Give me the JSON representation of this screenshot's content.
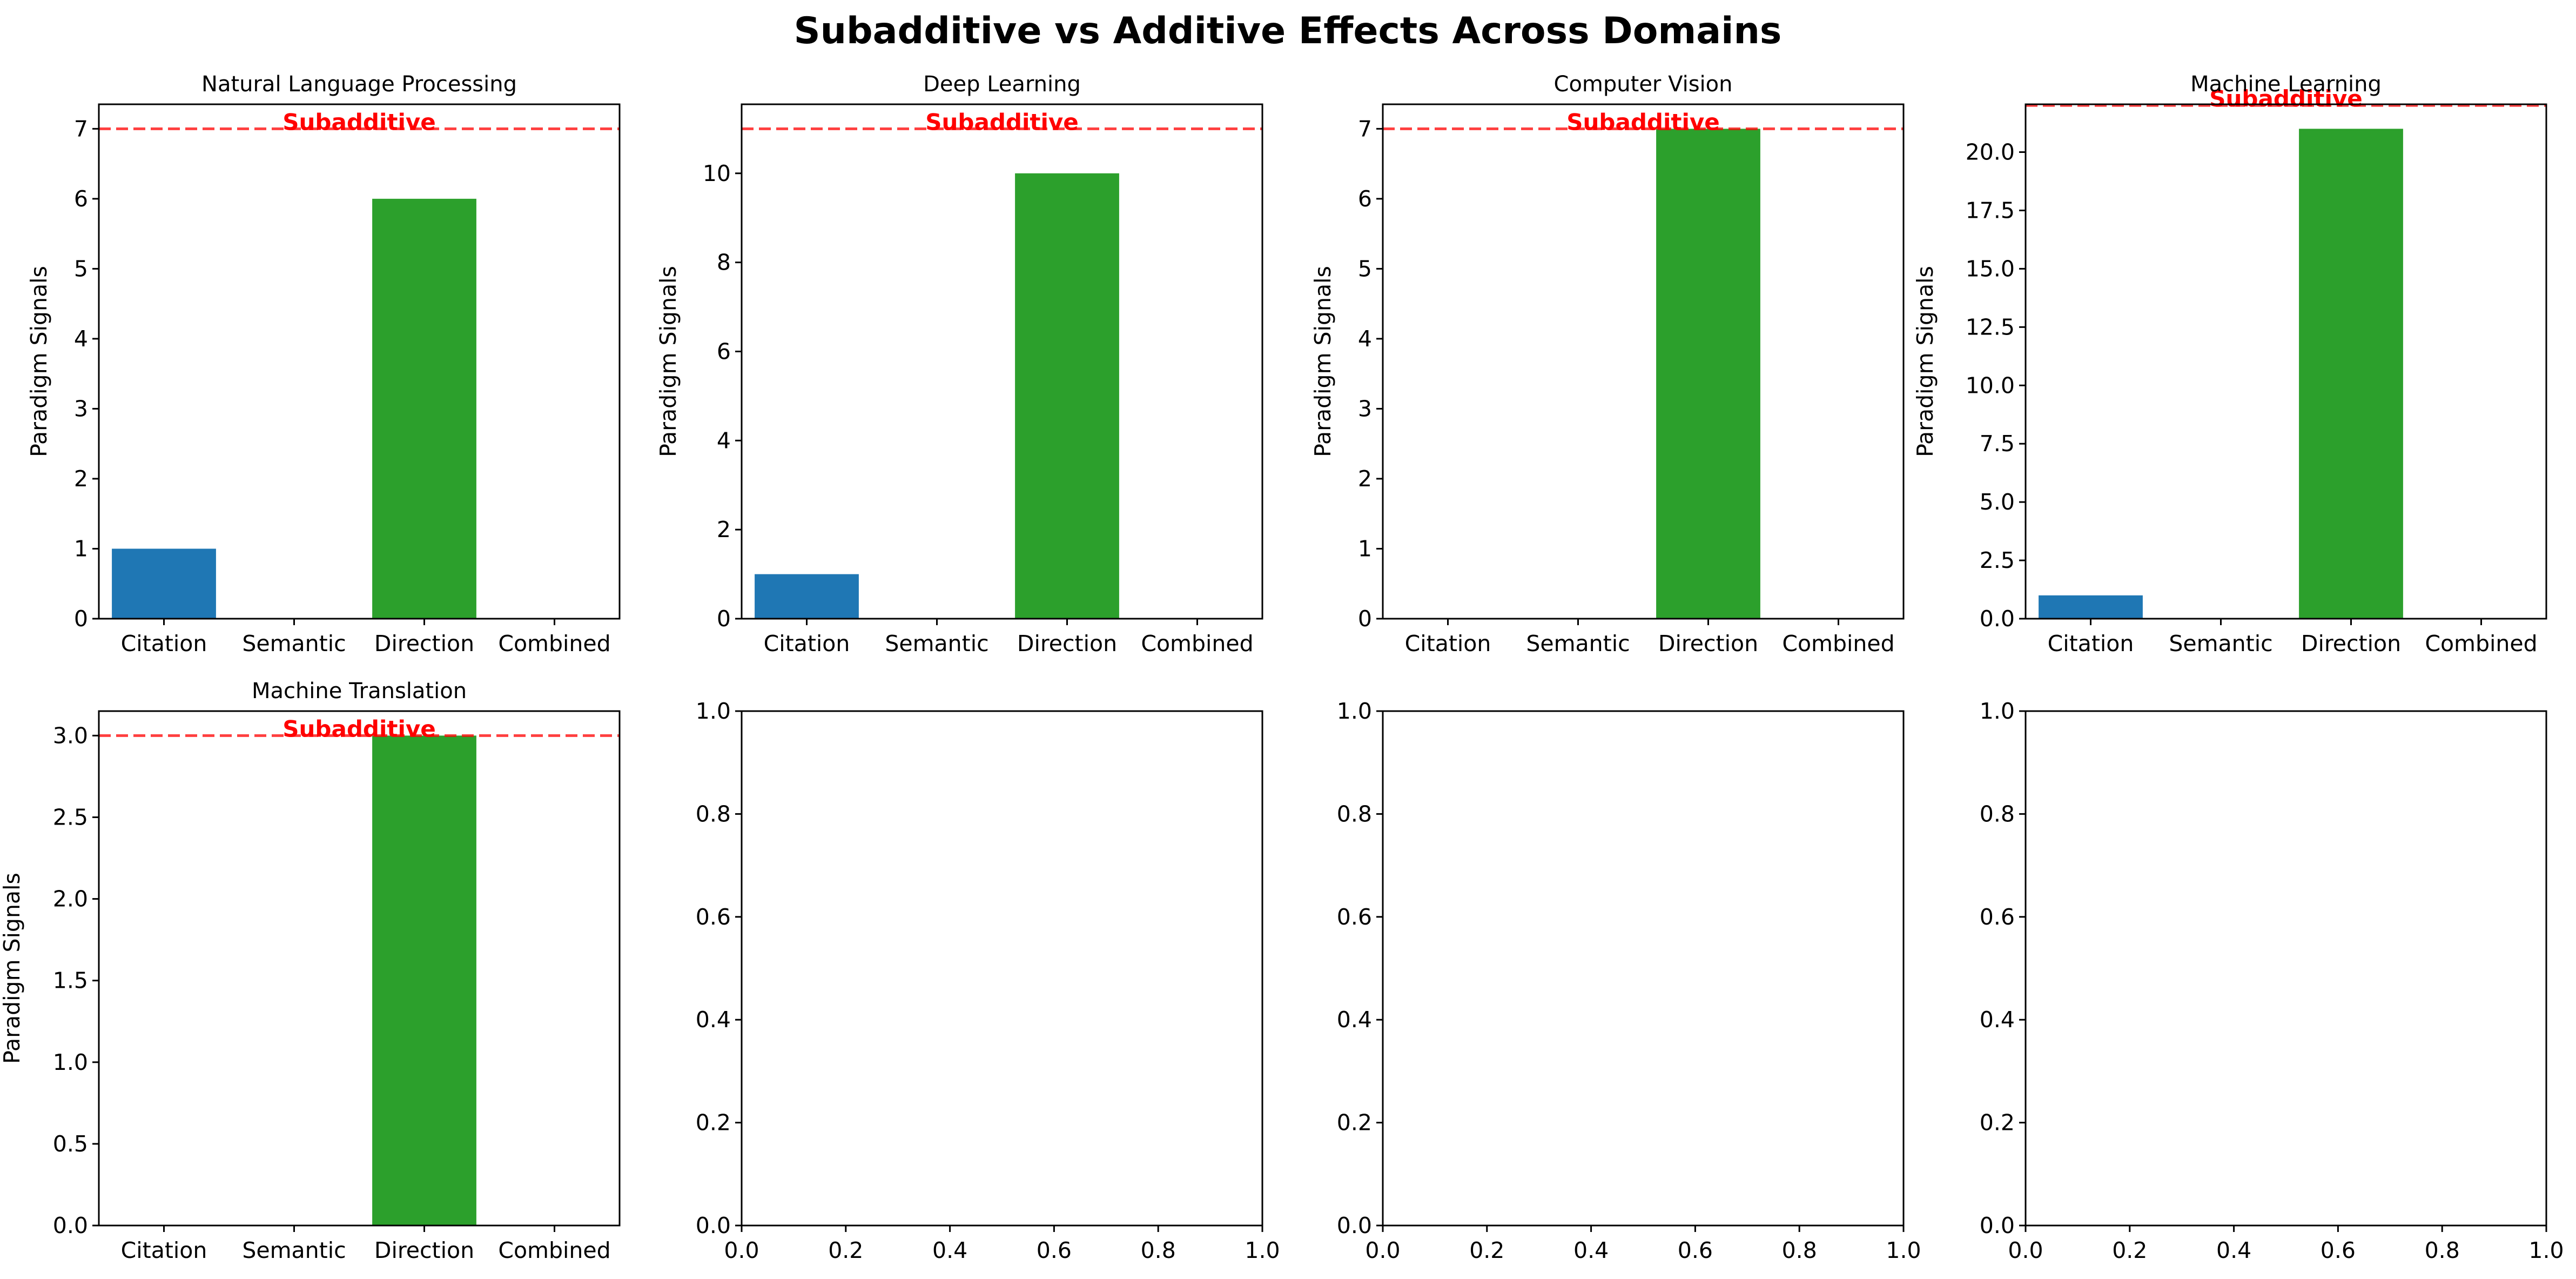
{
  "title": "Subadditive vs Additive Effects Across Domains",
  "colors": {
    "Citation": "#1f77b4",
    "Semantic": "#ff7f0e",
    "Direction": "#2ca02c",
    "Combined": "#d62728",
    "threshold_line": "#ff0000"
  },
  "chart_data": [
    {
      "type": "bar",
      "title": "Natural Language Processing",
      "categories": [
        "Citation",
        "Semantic",
        "Direction",
        "Combined"
      ],
      "values": [
        1,
        0,
        6,
        0
      ],
      "ylabel": "Paradigm Signals",
      "ylim": [
        0,
        7.35
      ],
      "yticks": [
        "0",
        "1",
        "2",
        "3",
        "4",
        "5",
        "6",
        "7"
      ],
      "threshold": 7,
      "threshold_label": "Subadditive",
      "grid": false
    },
    {
      "type": "bar",
      "title": "Deep Learning",
      "categories": [
        "Citation",
        "Semantic",
        "Direction",
        "Combined"
      ],
      "values": [
        1,
        0,
        10,
        0
      ],
      "ylabel": "Paradigm Signals",
      "ylim": [
        0,
        11.55
      ],
      "yticks": [
        "0",
        "2",
        "4",
        "6",
        "8",
        "10"
      ],
      "threshold": 11,
      "threshold_label": "Subadditive",
      "grid": false
    },
    {
      "type": "bar",
      "title": "Computer Vision",
      "categories": [
        "Citation",
        "Semantic",
        "Direction",
        "Combined"
      ],
      "values": [
        0,
        0,
        7,
        0
      ],
      "ylabel": "Paradigm Signals",
      "ylim": [
        0,
        7.35
      ],
      "yticks": [
        "0",
        "1",
        "2",
        "3",
        "4",
        "5",
        "6",
        "7"
      ],
      "threshold": 7,
      "threshold_label": "Subadditive",
      "grid": false
    },
    {
      "type": "bar",
      "title": "Machine Learning",
      "categories": [
        "Citation",
        "Semantic",
        "Direction",
        "Combined"
      ],
      "values": [
        1,
        0,
        21,
        0
      ],
      "ylabel": "Paradigm Signals",
      "ylim": [
        0,
        22.05
      ],
      "yticks": [
        "0.0",
        "2.5",
        "5.0",
        "7.5",
        "10.0",
        "12.5",
        "15.0",
        "17.5",
        "20.0"
      ],
      "threshold": 22,
      "threshold_label": "Subadditive",
      "grid": false
    },
    {
      "type": "bar",
      "title": "Machine Translation",
      "categories": [
        "Citation",
        "Semantic",
        "Direction",
        "Combined"
      ],
      "values": [
        0,
        0,
        3,
        0
      ],
      "ylabel": "Paradigm Signals",
      "ylim": [
        0,
        3.15
      ],
      "yticks": [
        "0.0",
        "0.5",
        "1.0",
        "1.5",
        "2.0",
        "2.5",
        "3.0"
      ],
      "threshold": 3,
      "threshold_label": "Subadditive",
      "grid": false
    },
    {
      "type": "empty",
      "xlim": [
        0,
        1
      ],
      "ylim": [
        0,
        1
      ],
      "xticks": [
        "0.0",
        "0.2",
        "0.4",
        "0.6",
        "0.8",
        "1.0"
      ],
      "yticks": [
        "0.0",
        "0.2",
        "0.4",
        "0.6",
        "0.8",
        "1.0"
      ]
    },
    {
      "type": "empty",
      "xlim": [
        0,
        1
      ],
      "ylim": [
        0,
        1
      ],
      "xticks": [
        "0.0",
        "0.2",
        "0.4",
        "0.6",
        "0.8",
        "1.0"
      ],
      "yticks": [
        "0.0",
        "0.2",
        "0.4",
        "0.6",
        "0.8",
        "1.0"
      ]
    },
    {
      "type": "empty",
      "xlim": [
        0,
        1
      ],
      "ylim": [
        0,
        1
      ],
      "xticks": [
        "0.0",
        "0.2",
        "0.4",
        "0.6",
        "0.8",
        "1.0"
      ],
      "yticks": [
        "0.0",
        "0.2",
        "0.4",
        "0.6",
        "0.8",
        "1.0"
      ]
    }
  ]
}
